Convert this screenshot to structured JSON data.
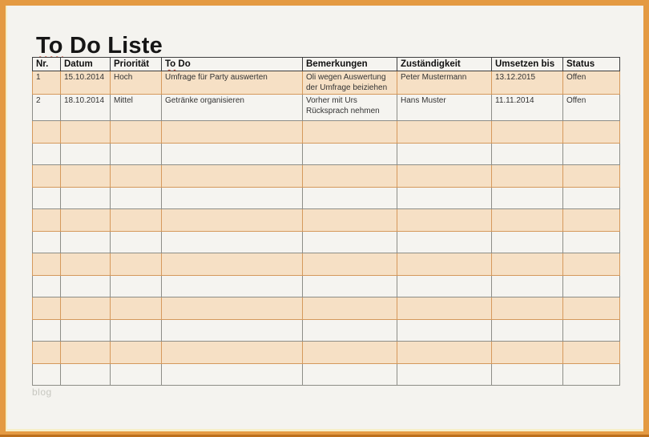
{
  "page": {
    "title_full": "To Do Liste",
    "title_split": {
      "underlined": "To",
      "rest": " Do Liste"
    },
    "watermark": "blog"
  },
  "colors": {
    "frame_orange": "#E49A42",
    "frame_bottom_edge": "#BC6F1B",
    "frame_inner_accent": "#F6EEC6",
    "page_background": "#F4F3EF",
    "row_peach": "#F6E0C5",
    "row_peach_border": "#D5995C",
    "row_plain": "#F5F4F0",
    "row_plain_border": "#8D8D87",
    "header_border": "#3E3E3E",
    "spellcheck_squiggle": "#C94434",
    "watermark_text": "#C7C7C0"
  },
  "table": {
    "columns": [
      "Nr.",
      "Datum",
      "Priorität",
      "To Do",
      "Bemerkungen",
      "Zuständigkeit",
      "Umsetzen bis",
      "Status"
    ],
    "todo_header_split": {
      "underlined": "To",
      "rest": " Do"
    },
    "rows": [
      {
        "nr": "1",
        "datum": "15.10.2014",
        "prioritaet": "Hoch",
        "todo": "Umfrage für Party auswerten",
        "bemerkungen": "Oli wegen Auswertung der Umfrage beiziehen",
        "zustaendigkeit": "Peter Mustermann",
        "umsetzen_bis": "13.12.2015",
        "status": "Offen"
      },
      {
        "nr": "2",
        "datum": "18.10.2014",
        "prioritaet": "Mittel",
        "todo": "Getränke organisieren",
        "bemerkungen": "Vorher mit Urs Rücksprach nehmen",
        "zustaendigkeit": "Hans Muster",
        "umsetzen_bis": "11.11.2014",
        "status": "Offen"
      }
    ],
    "empty_row_count": 12
  }
}
